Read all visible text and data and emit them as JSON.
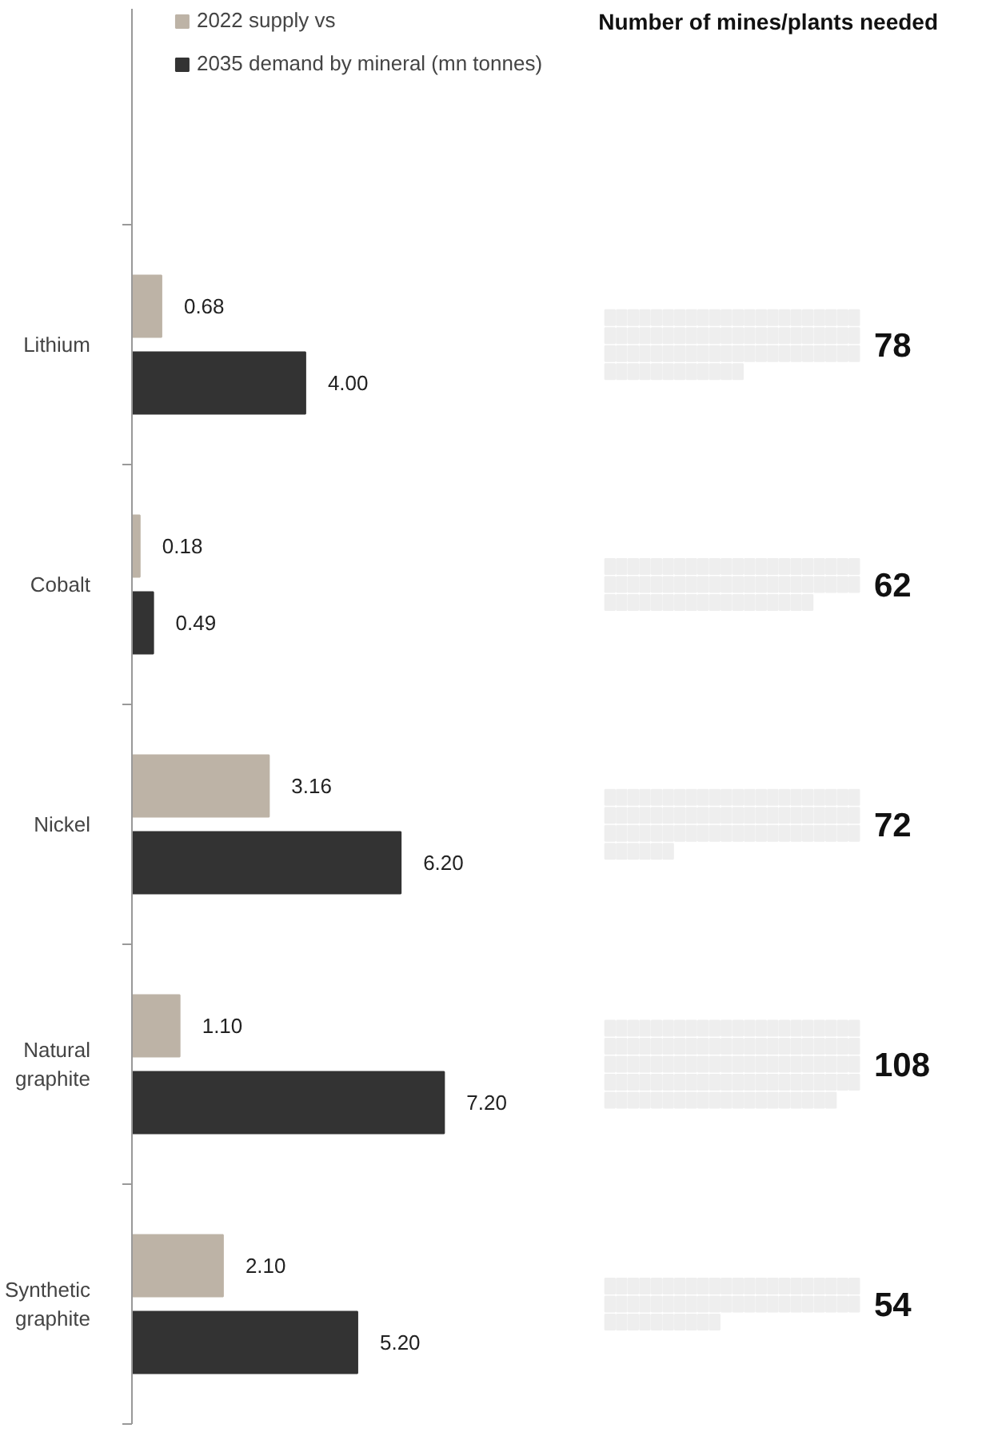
{
  "chart_data": [
    {
      "type": "bar",
      "orientation": "horizontal",
      "categories": [
        "Lithium",
        "Cobalt",
        "Nickel",
        "Natural graphite",
        "Synthetic graphite"
      ],
      "series": [
        {
          "name": "2022 supply vs",
          "color": "#bdb3a6",
          "values": [
            0.68,
            0.18,
            3.16,
            1.1,
            2.1
          ],
          "value_labels": [
            "0.68",
            "0.18",
            "3.16",
            "1.10",
            "2.10"
          ]
        },
        {
          "name": "2035 demand by mineral (mn tonnes)",
          "color": "#333333",
          "values": [
            4.0,
            0.49,
            6.2,
            7.2,
            5.2
          ],
          "value_labels": [
            "4.00",
            "0.49",
            "6.20",
            "7.20",
            "5.20"
          ]
        }
      ],
      "legend": "top",
      "grid": false,
      "tick_labels": "y"
    },
    {
      "type": "other",
      "title": "Number of mines/plants needed",
      "categories": [
        null,
        null,
        null,
        null,
        null
      ],
      "values": [
        78,
        62,
        72,
        108,
        54
      ],
      "color": "#eeeeee",
      "data_labels": true
    }
  ]
}
